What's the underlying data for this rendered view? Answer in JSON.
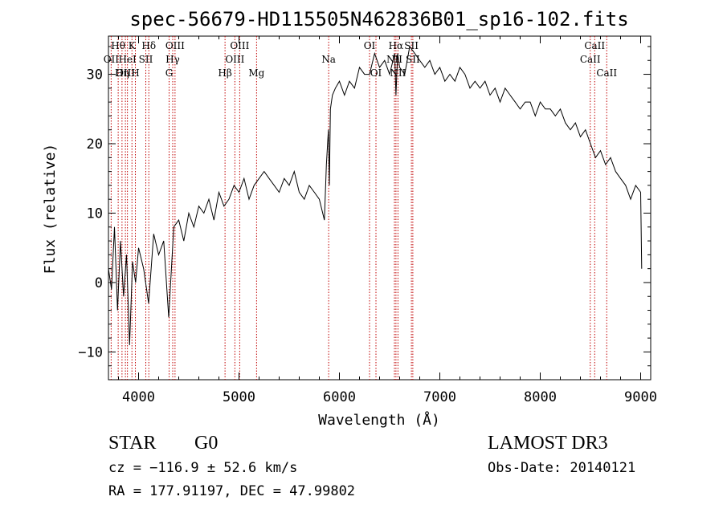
{
  "chart_data": {
    "type": "line",
    "title": "spec-56679-HD115505N462836B01_sp16-102.fits",
    "xlabel": "Wavelength (Å)",
    "ylabel": "Flux (relative)",
    "xlim": [
      3700,
      9100
    ],
    "ylim": [
      -14,
      35.5
    ],
    "x_ticks": [
      4000,
      5000,
      6000,
      7000,
      8000,
      9000
    ],
    "y_ticks": [
      -10,
      0,
      10,
      20,
      30
    ],
    "series": [
      {
        "name": "flux",
        "x": [
          3700,
          3730,
          3760,
          3790,
          3820,
          3850,
          3880,
          3910,
          3940,
          3970,
          4000,
          4050,
          4100,
          4150,
          4200,
          4250,
          4300,
          4350,
          4400,
          4450,
          4500,
          4550,
          4600,
          4650,
          4700,
          4750,
          4800,
          4850,
          4900,
          4950,
          5000,
          5050,
          5100,
          5150,
          5200,
          5250,
          5300,
          5350,
          5400,
          5450,
          5500,
          5550,
          5600,
          5650,
          5700,
          5750,
          5800,
          5850,
          5870,
          5890,
          5900,
          5910,
          5930,
          5960,
          6000,
          6050,
          6100,
          6150,
          6200,
          6250,
          6300,
          6350,
          6400,
          6450,
          6500,
          6550,
          6563,
          6580,
          6600,
          6650,
          6700,
          6750,
          6800,
          6850,
          6900,
          6950,
          7000,
          7050,
          7100,
          7150,
          7200,
          7250,
          7300,
          7350,
          7400,
          7450,
          7500,
          7550,
          7600,
          7650,
          7700,
          7750,
          7800,
          7850,
          7900,
          7950,
          8000,
          8050,
          8100,
          8150,
          8200,
          8250,
          8300,
          8350,
          8400,
          8450,
          8500,
          8550,
          8600,
          8650,
          8700,
          8750,
          8800,
          8850,
          8900,
          8950,
          9000,
          9010
        ],
        "values": [
          2,
          -1,
          8,
          -4,
          6,
          -2,
          4,
          -9,
          3,
          0,
          5,
          2,
          -3,
          7,
          4,
          6,
          -5,
          8,
          9,
          6,
          10,
          8,
          11,
          10,
          12,
          9,
          13,
          11,
          12,
          14,
          13,
          15,
          12,
          14,
          15,
          16,
          15,
          14,
          13,
          15,
          14,
          16,
          13,
          12,
          14,
          13,
          12,
          9,
          17,
          22,
          14,
          25,
          27,
          28,
          29,
          27,
          29,
          28,
          31,
          30,
          30,
          33,
          31,
          32,
          30,
          33,
          27,
          33,
          31,
          30,
          34,
          33,
          32,
          31,
          32,
          30,
          31,
          29,
          30,
          29,
          31,
          30,
          28,
          29,
          28,
          29,
          27,
          28,
          26,
          28,
          27,
          26,
          25,
          26,
          26,
          24,
          26,
          25,
          25,
          24,
          25,
          23,
          22,
          23,
          21,
          22,
          20,
          18,
          19,
          17,
          18,
          16,
          15,
          14,
          12,
          14,
          13,
          2
        ],
        "color": "#000000"
      }
    ],
    "lines": [
      {
        "label": "Hθ",
        "x": 3797,
        "row": 0
      },
      {
        "label": "OII",
        "x": 3727,
        "row": 1
      },
      {
        "label": "OIII",
        "x": 3869,
        "row": 2
      },
      {
        "label": "HeI",
        "x": 3889,
        "row": 1
      },
      {
        "label": "Hη",
        "x": 3835,
        "row": 2
      },
      {
        "label": "K",
        "x": 3934,
        "row": 0
      },
      {
        "label": "H",
        "x": 3968,
        "row": 2
      },
      {
        "label": "SII",
        "x": 4072,
        "row": 1
      },
      {
        "label": "Hδ",
        "x": 4102,
        "row": 0
      },
      {
        "label": "OIII",
        "x": 4363,
        "row": 0
      },
      {
        "label": "Hγ",
        "x": 4340,
        "row": 1
      },
      {
        "label": "G",
        "x": 4304,
        "row": 2
      },
      {
        "label": "Hβ",
        "x": 4861,
        "row": 2
      },
      {
        "label": "OIII",
        "x": 5007,
        "row": 0
      },
      {
        "label": "OIII",
        "x": 4959,
        "row": 1
      },
      {
        "label": "Mg",
        "x": 5175,
        "row": 2
      },
      {
        "label": "Na",
        "x": 5893,
        "row": 1
      },
      {
        "label": "OI",
        "x": 6300,
        "row": 0
      },
      {
        "label": "OI",
        "x": 6364,
        "row": 2
      },
      {
        "label": "Hα",
        "x": 6563,
        "row": 0
      },
      {
        "label": "NII",
        "x": 6548,
        "row": 1
      },
      {
        "label": "NII",
        "x": 6583,
        "row": 2
      },
      {
        "label": "SII",
        "x": 6717,
        "row": 0
      },
      {
        "label": "SII",
        "x": 6731,
        "row": 1
      },
      {
        "label": "CaII",
        "x": 8542,
        "row": 0
      },
      {
        "label": "CaII",
        "x": 8498,
        "row": 1
      },
      {
        "label": "CaII",
        "x": 8662,
        "row": 2
      }
    ]
  },
  "info": {
    "class_label": "STAR",
    "subclass": "G0",
    "survey": "LAMOST DR3",
    "cz": "cz = −116.9 ± 52.6 km/s",
    "obs_date": "Obs-Date: 20140121",
    "coords": "RA = 177.91197, DEC =  47.99802"
  }
}
